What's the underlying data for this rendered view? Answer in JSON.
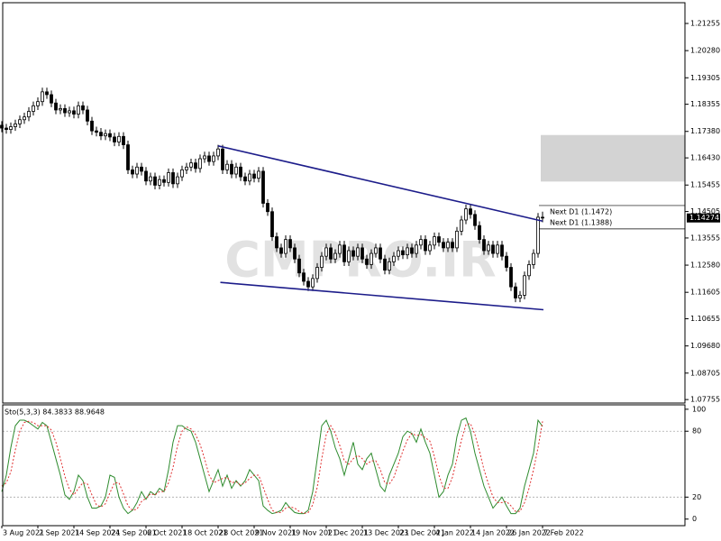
{
  "chart_data": [
    {
      "type": "candlestick",
      "watermark": "CMPRO.IR",
      "categories": [
        "3 Aug 2021",
        null,
        null,
        null,
        null,
        null,
        null,
        null,
        "2 Sep 2021",
        null,
        null,
        null,
        null,
        null,
        null,
        null,
        "14 Sep 2021",
        null,
        null,
        null,
        null,
        null,
        null,
        null,
        "24 Sep 2021",
        null,
        null,
        null,
        null,
        null,
        null,
        null,
        "6 Oct 2021",
        null,
        null,
        null,
        null,
        null,
        null,
        null,
        "18 Oct 2021",
        null,
        null,
        null,
        null,
        null,
        null,
        null,
        "28 Oct 2021",
        null,
        null,
        null,
        null,
        null,
        null,
        null,
        "9 Nov 2021",
        null,
        null,
        null,
        null,
        null,
        null,
        null,
        "19 Nov 2021",
        null,
        null,
        null,
        null,
        null,
        null,
        null,
        "1 Dec 2021",
        null,
        null,
        null,
        null,
        null,
        null,
        null,
        "13 Dec 2021",
        null,
        null,
        null,
        null,
        null,
        null,
        null,
        "23 Dec 2021",
        null,
        null,
        null,
        null,
        null,
        null,
        null,
        "4 Jan 2022",
        null,
        null,
        null,
        null,
        null,
        null,
        null,
        "14 Jan 2022",
        null,
        null,
        null,
        null,
        null,
        null,
        null,
        "26 Jan 2022",
        null,
        null,
        null,
        null,
        null,
        null,
        null,
        "7 Feb 2022"
      ],
      "open": [
        1.176,
        1.175,
        1.1745,
        1.1755,
        1.1765,
        1.178,
        1.179,
        1.181,
        1.183,
        1.1845,
        1.188,
        1.187,
        1.184,
        1.1815,
        1.182,
        1.1805,
        1.1812,
        1.18,
        1.183,
        1.1815,
        1.1775,
        1.174,
        1.1735,
        1.1722,
        1.173,
        1.1718,
        1.17,
        1.172,
        1.169,
        1.16,
        1.1585,
        1.161,
        1.1595,
        1.156,
        1.1575,
        1.1545,
        1.1565,
        1.1555,
        1.159,
        1.155,
        1.1575,
        1.16,
        1.161,
        1.1625,
        1.1605,
        1.164,
        1.165,
        1.163,
        1.165,
        1.1675,
        1.16,
        1.162,
        1.1585,
        1.161,
        1.1575,
        1.156,
        1.1585,
        1.157,
        1.1595,
        1.148,
        1.145,
        1.136,
        1.132,
        1.13,
        1.135,
        1.132,
        1.128,
        1.123,
        1.12,
        1.118,
        1.121,
        1.125,
        1.129,
        1.132,
        1.128,
        1.13,
        1.133,
        1.127,
        1.131,
        1.129,
        1.132,
        1.128,
        1.126,
        1.13,
        1.132,
        1.128,
        1.124,
        1.127,
        1.129,
        1.131,
        1.1295,
        1.132,
        1.13,
        1.133,
        1.135,
        1.131,
        1.133,
        1.136,
        1.134,
        1.132,
        1.134,
        1.132,
        1.138,
        1.142,
        1.146,
        1.144,
        1.14,
        1.135,
        1.131,
        1.133,
        1.13,
        1.133,
        1.129,
        1.125,
        1.118,
        1.114,
        1.115,
        1.122,
        1.126,
        1.13,
        1.143
      ],
      "high": [
        1.1775,
        1.1765,
        1.177,
        1.178,
        1.1795,
        1.1805,
        1.1825,
        1.1845,
        1.186,
        1.1895,
        1.1895,
        1.1885,
        1.1855,
        1.1835,
        1.1835,
        1.1827,
        1.1827,
        1.1845,
        1.1845,
        1.183,
        1.179,
        1.1755,
        1.175,
        1.1745,
        1.1745,
        1.1733,
        1.1735,
        1.1735,
        1.1705,
        1.1615,
        1.1625,
        1.1625,
        1.161,
        1.159,
        1.159,
        1.158,
        1.158,
        1.1605,
        1.1605,
        1.159,
        1.1615,
        1.1625,
        1.164,
        1.164,
        1.1655,
        1.1665,
        1.1665,
        1.1665,
        1.169,
        1.169,
        1.1635,
        1.1635,
        1.1625,
        1.1625,
        1.159,
        1.16,
        1.16,
        1.161,
        1.161,
        1.1495,
        1.1465,
        1.1375,
        1.1335,
        1.1365,
        1.1365,
        1.1335,
        1.1295,
        1.1245,
        1.1215,
        1.1225,
        1.1265,
        1.1305,
        1.1335,
        1.1335,
        1.1315,
        1.1345,
        1.1345,
        1.1325,
        1.1325,
        1.1335,
        1.1335,
        1.1295,
        1.1315,
        1.1335,
        1.1335,
        1.1295,
        1.1285,
        1.1305,
        1.1325,
        1.1325,
        1.1335,
        1.1335,
        1.1345,
        1.1365,
        1.1365,
        1.1345,
        1.1375,
        1.1375,
        1.1355,
        1.1355,
        1.1355,
        1.1395,
        1.1435,
        1.1475,
        1.1475,
        1.1455,
        1.1415,
        1.1365,
        1.1345,
        1.1345,
        1.1345,
        1.1345,
        1.1305,
        1.1265,
        1.1195,
        1.1165,
        1.1235,
        1.1275,
        1.1315,
        1.1445,
        1.145
      ],
      "low": [
        1.1735,
        1.173,
        1.173,
        1.174,
        1.175,
        1.1765,
        1.1775,
        1.1795,
        1.1815,
        1.183,
        1.1855,
        1.1825,
        1.18,
        1.18,
        1.179,
        1.179,
        1.1785,
        1.1785,
        1.18,
        1.176,
        1.1725,
        1.172,
        1.1707,
        1.1707,
        1.1703,
        1.1685,
        1.1685,
        1.1675,
        1.1585,
        1.157,
        1.157,
        1.158,
        1.1545,
        1.1545,
        1.153,
        1.153,
        1.154,
        1.154,
        1.1535,
        1.1535,
        1.156,
        1.1585,
        1.1595,
        1.159,
        1.159,
        1.1625,
        1.1615,
        1.1615,
        1.1635,
        1.1585,
        1.1585,
        1.157,
        1.157,
        1.156,
        1.1545,
        1.1545,
        1.1555,
        1.1555,
        1.1465,
        1.1435,
        1.1345,
        1.1305,
        1.1285,
        1.1285,
        1.1305,
        1.1265,
        1.1215,
        1.1185,
        1.1165,
        1.1165,
        1.1195,
        1.1235,
        1.1275,
        1.1265,
        1.1265,
        1.1285,
        1.1255,
        1.1255,
        1.1275,
        1.1275,
        1.1265,
        1.1245,
        1.1245,
        1.1285,
        1.1265,
        1.1225,
        1.1225,
        1.1255,
        1.1275,
        1.128,
        1.128,
        1.1285,
        1.1285,
        1.1315,
        1.1295,
        1.1295,
        1.1315,
        1.1325,
        1.1305,
        1.1305,
        1.1305,
        1.1305,
        1.1365,
        1.1405,
        1.1425,
        1.1385,
        1.1335,
        1.1295,
        1.1295,
        1.1285,
        1.1285,
        1.1275,
        1.1235,
        1.1165,
        1.1125,
        1.1125,
        1.1135,
        1.1205,
        1.1245,
        1.1285,
        1.1412
      ],
      "close": [
        1.175,
        1.1745,
        1.1755,
        1.1765,
        1.178,
        1.179,
        1.181,
        1.183,
        1.1845,
        1.188,
        1.187,
        1.184,
        1.1815,
        1.182,
        1.1805,
        1.1812,
        1.18,
        1.183,
        1.1815,
        1.1775,
        1.174,
        1.1735,
        1.1722,
        1.173,
        1.1718,
        1.17,
        1.172,
        1.169,
        1.16,
        1.1585,
        1.161,
        1.1595,
        1.156,
        1.1575,
        1.1545,
        1.1565,
        1.1555,
        1.159,
        1.155,
        1.1575,
        1.16,
        1.161,
        1.1625,
        1.1605,
        1.164,
        1.165,
        1.163,
        1.165,
        1.1675,
        1.16,
        1.162,
        1.1585,
        1.161,
        1.1575,
        1.156,
        1.1585,
        1.157,
        1.1595,
        1.148,
        1.145,
        1.136,
        1.132,
        1.13,
        1.135,
        1.132,
        1.128,
        1.123,
        1.12,
        1.118,
        1.121,
        1.125,
        1.129,
        1.132,
        1.128,
        1.13,
        1.133,
        1.127,
        1.131,
        1.129,
        1.132,
        1.128,
        1.126,
        1.13,
        1.132,
        1.128,
        1.124,
        1.127,
        1.129,
        1.131,
        1.1295,
        1.132,
        1.13,
        1.133,
        1.135,
        1.131,
        1.133,
        1.136,
        1.134,
        1.132,
        1.134,
        1.132,
        1.138,
        1.142,
        1.146,
        1.144,
        1.14,
        1.135,
        1.131,
        1.133,
        1.13,
        1.133,
        1.129,
        1.125,
        1.118,
        1.114,
        1.115,
        1.122,
        1.126,
        1.13,
        1.143,
        1.1427
      ],
      "up_color": "#ffffff",
      "down_color": "#000000",
      "ylim": [
        1.0763,
        1.22
      ],
      "yticks": [
        1.21255,
        {
          "value": 1.2028,
          "label": "1.20280"
        },
        1.19305,
        1.18355,
        {
          "value": 1.1738,
          "label": "1.17380"
        },
        {
          "value": 1.1643,
          "label": "1.16430"
        },
        1.15455,
        1.14505,
        1.13555,
        {
          "value": 1.1258,
          "label": "1.12580"
        },
        1.11605,
        1.10655,
        {
          "value": 1.0968,
          "label": "1.09680"
        },
        1.08705,
        1.07755
      ],
      "trendlines": [
        {
          "points": [
            48,
            120
          ],
          "values": [
            1.1686,
            1.1416
          ],
          "color": "#1c1c8a"
        },
        {
          "points": [
            48.5,
            120.2
          ],
          "values": [
            1.1196,
            1.1098
          ],
          "color": "#1c1c8a"
        }
      ],
      "zone": [
        1.1725,
        1.1558
      ],
      "zone_color": "#d3d3d3",
      "levels": [
        {
          "value": 1.1472,
          "label": "Next D1 (1.1472)"
        },
        {
          "value": 1.1388,
          "label": "Next D1 (1.1388)"
        }
      ],
      "last_price": 1.14274
    },
    {
      "type": "line",
      "title": "Sto(5,3,3) 84.3833 88.9648",
      "series": [
        {
          "color": "#2e8b2e",
          "dash": false,
          "values": [
            25,
            40,
            65,
            85,
            90,
            90,
            88,
            85,
            82,
            88,
            85,
            70,
            55,
            40,
            22,
            18,
            25,
            40,
            35,
            20,
            10,
            10,
            12,
            20,
            40,
            38,
            20,
            10,
            5,
            8,
            15,
            25,
            18,
            25,
            22,
            28,
            25,
            45,
            70,
            85,
            85,
            82,
            80,
            70,
            55,
            40,
            25,
            35,
            45,
            30,
            40,
            28,
            35,
            30,
            35,
            45,
            40,
            35,
            12,
            8,
            5,
            6,
            8,
            15,
            10,
            6,
            5,
            5,
            8,
            25,
            55,
            85,
            90,
            80,
            65,
            55,
            40,
            55,
            70,
            50,
            45,
            55,
            60,
            45,
            30,
            25,
            40,
            50,
            60,
            75,
            80,
            78,
            70,
            82,
            70,
            60,
            40,
            20,
            25,
            40,
            50,
            75,
            90,
            92,
            80,
            60,
            45,
            30,
            20,
            10,
            15,
            20,
            12,
            5,
            5,
            10,
            30,
            45,
            60,
            90,
            84.3833
          ]
        },
        {
          "color": "#e03030",
          "dash": true,
          "values": [
            30,
            33,
            43,
            63,
            80,
            88,
            89,
            88,
            85,
            85,
            85,
            81,
            70,
            55,
            39,
            27,
            22,
            28,
            33,
            32,
            22,
            13,
            11,
            14,
            24,
            33,
            33,
            23,
            12,
            8,
            9,
            16,
            19,
            23,
            22,
            25,
            25,
            33,
            47,
            67,
            80,
            84,
            82,
            77,
            68,
            55,
            40,
            33,
            35,
            37,
            38,
            33,
            34,
            31,
            33,
            37,
            40,
            40,
            29,
            18,
            8,
            6,
            6,
            10,
            11,
            10,
            7,
            5,
            6,
            13,
            29,
            55,
            77,
            85,
            78,
            67,
            53,
            50,
            55,
            58,
            55,
            50,
            53,
            53,
            45,
            33,
            32,
            38,
            50,
            62,
            72,
            78,
            76,
            77,
            74,
            71,
            57,
            40,
            28,
            28,
            38,
            55,
            72,
            86,
            87,
            77,
            62,
            45,
            32,
            20,
            15,
            15,
            16,
            12,
            7,
            7,
            15,
            28,
            45,
            65,
            88.9648
          ]
        }
      ],
      "ylim": [
        -6,
        104
      ],
      "yticks": [
        100,
        80,
        20,
        0
      ],
      "levels": [
        80,
        20
      ]
    }
  ]
}
